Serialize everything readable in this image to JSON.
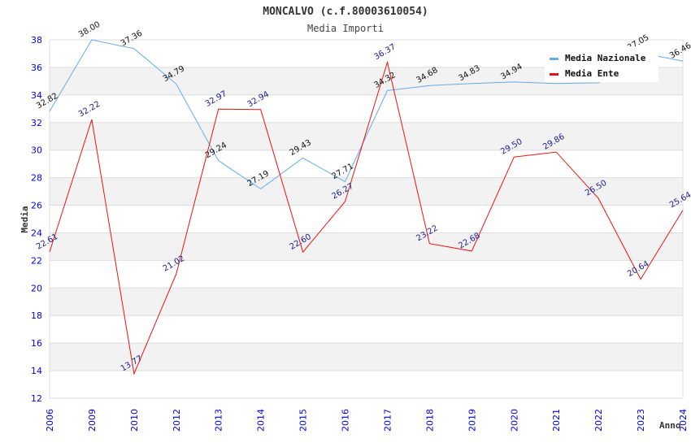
{
  "chart_data": {
    "type": "line",
    "title": "MONCALVO (c.f.80003610054)",
    "subtitle": "Media Importi",
    "xlabel": "Anno",
    "ylabel": "Media",
    "ylim": [
      12,
      38
    ],
    "yticks": [
      12,
      14,
      16,
      18,
      20,
      22,
      24,
      26,
      28,
      30,
      32,
      34,
      36,
      38
    ],
    "categories": [
      "2006",
      "2009",
      "2010",
      "2012",
      "2013",
      "2014",
      "2015",
      "2016",
      "2017",
      "2018",
      "2019",
      "2020",
      "2021",
      "2022",
      "2023",
      "2024"
    ],
    "grid": true,
    "legend_position": "top-right",
    "series": [
      {
        "name": "Media Nazionale",
        "color": "#66aaee",
        "values": [
          32.82,
          38.0,
          37.36,
          34.79,
          29.24,
          27.19,
          29.43,
          27.71,
          34.32,
          34.68,
          34.83,
          34.94,
          34.83,
          34.88,
          37.05,
          36.46
        ],
        "labels": [
          "32.82",
          "38.00",
          "37.36",
          "34.79",
          "29.24",
          "27.19",
          "29.43",
          "27.71",
          "34.32",
          "34.68",
          "34.83",
          "34.94",
          "",
          "",
          "37.05",
          "36.46"
        ]
      },
      {
        "name": "Media Ente",
        "color": "#ee1111",
        "values": [
          22.61,
          32.22,
          13.77,
          21.02,
          32.97,
          32.94,
          22.6,
          26.27,
          36.37,
          23.22,
          22.68,
          29.5,
          29.86,
          26.5,
          20.64,
          25.64
        ],
        "labels": [
          "22.61",
          "32.22",
          "13.77",
          "21.02",
          "32.97",
          "32.94",
          "22.60",
          "26.27",
          "36.37",
          "23.22",
          "22.68",
          "29.50",
          "29.86",
          "26.50",
          "20.64",
          "25.64"
        ]
      }
    ]
  }
}
